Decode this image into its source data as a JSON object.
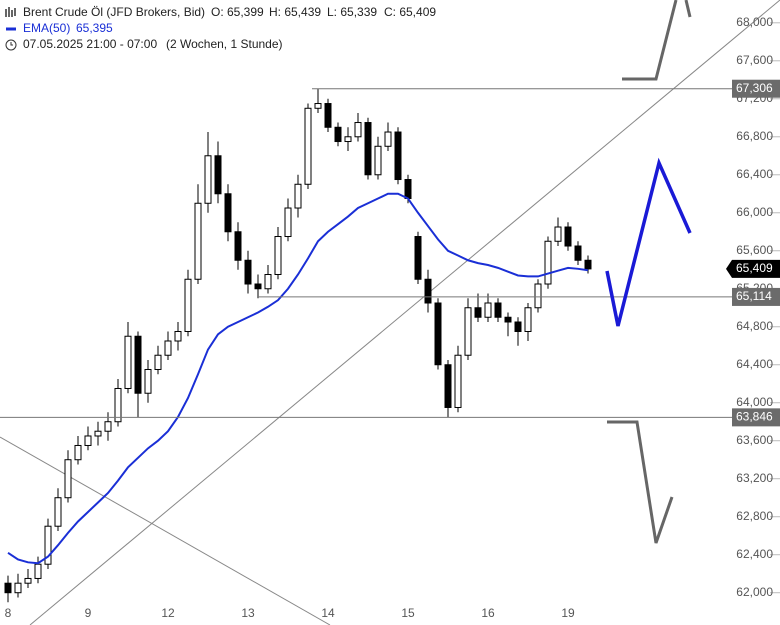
{
  "chart_data": {
    "type": "candlestick",
    "title": "Brent Crude Öl (JFD Brokers, Bid)",
    "ohlc": [
      "O: 65,399",
      "H: 65,439",
      "L: 65,339",
      "C: 65,409"
    ],
    "ema_name": "EMA(50)",
    "ema_label": "65,395",
    "ema_color": "#1a2fd6",
    "date_range": "07.05.2025 21:00 - 07:00",
    "period": "(2 Wochen, 1 Stunde)",
    "ylim": [
      61660,
      68240
    ],
    "yticks": [
      {
        "value": 62000,
        "label": "62,000"
      },
      {
        "value": 62400,
        "label": "62,400"
      },
      {
        "value": 62800,
        "label": "62,800"
      },
      {
        "value": 63200,
        "label": "63,200"
      },
      {
        "value": 63600,
        "label": "63,600"
      },
      {
        "value": 64000,
        "label": "64,000"
      },
      {
        "value": 64400,
        "label": "64,400"
      },
      {
        "value": 64800,
        "label": "64,800"
      },
      {
        "value": 65200,
        "label": "65,200"
      },
      {
        "value": 65600,
        "label": "65,600"
      },
      {
        "value": 66000,
        "label": "66,000"
      },
      {
        "value": 66400,
        "label": "66,400"
      },
      {
        "value": 66800,
        "label": "66,800"
      },
      {
        "value": 67200,
        "label": "67,200"
      },
      {
        "value": 67600,
        "label": "67,600"
      },
      {
        "value": 68000,
        "label": "68,000"
      }
    ],
    "levels": [
      {
        "value": 67306,
        "label": "67,306"
      },
      {
        "value": 65114,
        "label": "65,114"
      },
      {
        "value": 63846,
        "label": "63,846"
      }
    ],
    "last_price": {
      "value": 65409,
      "label": "65,409"
    },
    "days": [
      {
        "label": "8",
        "candles": [
          [
            62100,
            62180,
            61900,
            62000
          ],
          [
            62000,
            62200,
            61950,
            62100
          ],
          [
            62100,
            62250,
            62050,
            62150
          ],
          [
            62150,
            62380,
            62100,
            62300
          ],
          [
            62300,
            62780,
            62250,
            62700
          ],
          [
            62700,
            63100,
            62650,
            63000
          ],
          [
            63000,
            63500,
            62950,
            63400
          ],
          [
            63400,
            63650,
            63350,
            63550
          ]
        ],
        "ema": [
          62420,
          62350,
          62320,
          62310,
          62380,
          62500,
          62630,
          62750
        ]
      },
      {
        "label": "9",
        "candles": [
          [
            63550,
            63750,
            63500,
            63650
          ],
          [
            63650,
            63800,
            63550,
            63700
          ],
          [
            63700,
            63900,
            63600,
            63800
          ],
          [
            63800,
            64250,
            63750,
            64150
          ],
          [
            64150,
            64850,
            64100,
            64700
          ],
          [
            64700,
            64750,
            63850,
            64100
          ],
          [
            64100,
            64450,
            64000,
            64350
          ],
          [
            64350,
            64600,
            64300,
            64500
          ]
        ],
        "ema": [
          62850,
          62950,
          63050,
          63180,
          63320,
          63420,
          63520,
          63600
        ]
      },
      {
        "label": "12",
        "candles": [
          [
            64500,
            64750,
            64450,
            64650
          ],
          [
            64650,
            64850,
            64550,
            64750
          ],
          [
            64750,
            65400,
            64700,
            65300
          ],
          [
            65300,
            66300,
            65250,
            66100
          ],
          [
            66100,
            66850,
            66000,
            66600
          ],
          [
            66600,
            66750,
            66100,
            66200
          ],
          [
            66200,
            66300,
            65700,
            65800
          ],
          [
            65800,
            65900,
            65400,
            65500
          ]
        ],
        "ema": [
          63700,
          63850,
          64050,
          64300,
          64560,
          64720,
          64800,
          64850
        ]
      },
      {
        "label": "13",
        "candles": [
          [
            65500,
            65600,
            65150,
            65250
          ],
          [
            65250,
            65350,
            65100,
            65200
          ],
          [
            65200,
            65450,
            65150,
            65350
          ],
          [
            65350,
            65850,
            65300,
            65750
          ],
          [
            65750,
            66150,
            65700,
            66050
          ],
          [
            66050,
            66400,
            65950,
            66300
          ],
          [
            66300,
            67150,
            66250,
            67100
          ],
          [
            67100,
            67306,
            67050,
            67150
          ]
        ],
        "ema": [
          64900,
          64950,
          65010,
          65080,
          65200,
          65350,
          65520,
          65700
        ]
      },
      {
        "label": "14",
        "candles": [
          [
            67150,
            67200,
            66850,
            66900
          ],
          [
            66900,
            66950,
            66700,
            66750
          ],
          [
            66750,
            66900,
            66650,
            66800
          ],
          [
            66800,
            67050,
            66750,
            66950
          ],
          [
            66950,
            67000,
            66350,
            66400
          ],
          [
            66400,
            66800,
            66350,
            66700
          ],
          [
            66700,
            66950,
            66650,
            66850
          ],
          [
            66850,
            66900,
            66300,
            66350
          ]
        ],
        "ema": [
          65800,
          65880,
          65960,
          66050,
          66100,
          66150,
          66200,
          66200
        ]
      },
      {
        "label": "15",
        "candles": [
          [
            66350,
            66400,
            66100,
            66150
          ],
          [
            65750,
            65800,
            65250,
            65300
          ],
          [
            65300,
            65400,
            64950,
            65050
          ],
          [
            65050,
            65100,
            64350,
            64400
          ],
          [
            64400,
            64450,
            63846,
            63950
          ],
          [
            63950,
            64600,
            63900,
            64500
          ],
          [
            64500,
            65100,
            64450,
            65000
          ],
          [
            65000,
            65150,
            64850,
            64900
          ]
        ],
        "ema": [
          66150,
          66000,
          65860,
          65720,
          65600,
          65550,
          65500,
          65470
        ]
      },
      {
        "label": "16",
        "candles": [
          [
            64900,
            65150,
            64850,
            65050
          ],
          [
            65050,
            65100,
            64850,
            64900
          ],
          [
            64900,
            64950,
            64700,
            64850
          ],
          [
            64850,
            64900,
            64600,
            64750
          ],
          [
            64750,
            65050,
            64650,
            65000
          ],
          [
            65000,
            65300,
            64950,
            65250
          ],
          [
            65250,
            65750,
            65200,
            65700
          ],
          [
            65700,
            65950,
            65650,
            65850
          ]
        ],
        "ema": [
          65450,
          65420,
          65380,
          65340,
          65330,
          65330,
          65360,
          65390
        ]
      },
      {
        "label": "19",
        "candles": [
          [
            65850,
            65900,
            65600,
            65650
          ],
          [
            65650,
            65700,
            65450,
            65500
          ],
          [
            65500,
            65550,
            65360,
            65409
          ]
        ],
        "ema": [
          65420,
          65410,
          65395
        ]
      }
    ]
  }
}
